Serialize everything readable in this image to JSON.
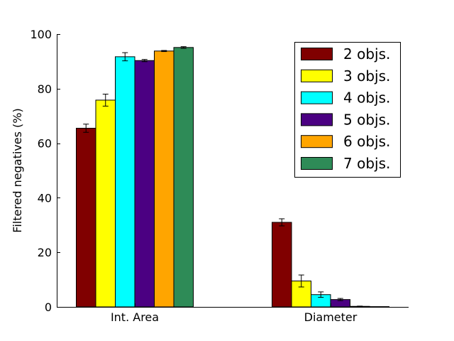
{
  "chart_data": {
    "type": "bar",
    "title": "",
    "xlabel": "",
    "ylabel": "Filtered negatives (%)",
    "categories": [
      "Int. Area",
      "Diameter"
    ],
    "ylim": [
      0,
      100
    ],
    "yticks": [
      0,
      20,
      40,
      60,
      80,
      100
    ],
    "grid": false,
    "legend_position": "top-right",
    "series": [
      {
        "name": "2 objs.",
        "color": "#800000",
        "values": [
          65.5,
          31.0
        ],
        "errors": [
          1.5,
          1.3
        ]
      },
      {
        "name": "3 objs.",
        "color": "#ffff00",
        "values": [
          75.8,
          9.5
        ],
        "errors": [
          2.2,
          2.2
        ]
      },
      {
        "name": "4 objs.",
        "color": "#00ffff",
        "values": [
          91.7,
          4.5
        ],
        "errors": [
          1.5,
          1.0
        ]
      },
      {
        "name": "5 objs.",
        "color": "#4b0082",
        "values": [
          90.3,
          2.7
        ],
        "errors": [
          0.4,
          0.4
        ]
      },
      {
        "name": "6 objs.",
        "color": "#ffa500",
        "values": [
          93.8,
          0.2
        ],
        "errors": [
          0.2,
          0.1
        ]
      },
      {
        "name": "7 objs.",
        "color": "#2e8b57",
        "values": [
          95.1,
          0.1
        ],
        "errors": [
          0.3,
          0.0
        ]
      }
    ]
  }
}
